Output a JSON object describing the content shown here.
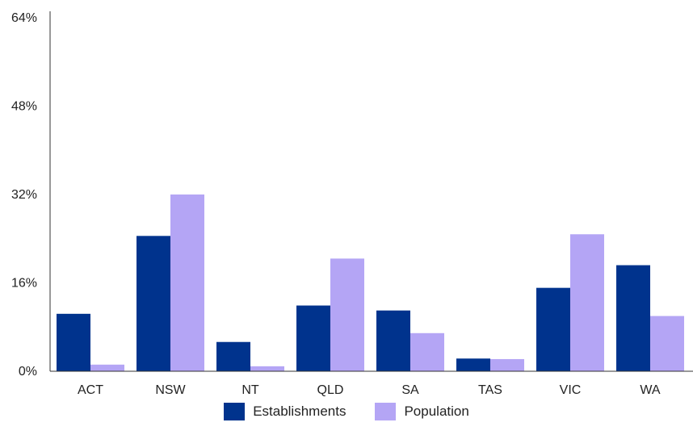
{
  "chart_data": {
    "type": "bar",
    "title": "",
    "xlabel": "",
    "ylabel": "",
    "categories": [
      "ACT",
      "NSW",
      "NT",
      "QLD",
      "SA",
      "TAS",
      "VIC",
      "WA"
    ],
    "y_ticks": [
      "0%",
      "16%",
      "32%",
      "48%",
      "64%"
    ],
    "ylim": [
      0,
      64
    ],
    "grid": false,
    "legend_position": "bottom",
    "series": [
      {
        "name": "Establishments",
        "color": "#00338D",
        "values": [
          10.4,
          24.5,
          5.3,
          11.9,
          11.0,
          2.3,
          15.1,
          19.2
        ]
      },
      {
        "name": "Population",
        "color": "#B4A5F5",
        "values": [
          1.2,
          32.0,
          0.9,
          20.4,
          6.9,
          2.2,
          24.8,
          10.0
        ]
      }
    ]
  }
}
